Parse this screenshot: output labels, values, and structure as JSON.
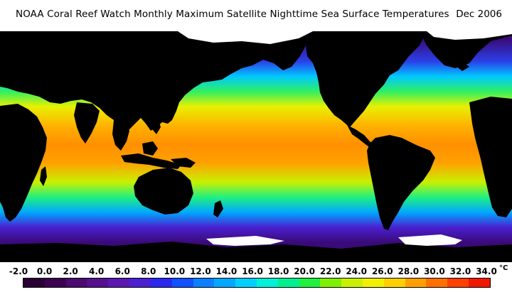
{
  "header": {
    "title": "NOAA Coral Reef Watch Monthly Maximum Satellite Nighttime Sea Surface Temperatures",
    "date": "Dec 2006"
  },
  "legend": {
    "unit": "°C",
    "ticks": [
      "-2.0",
      "0.0",
      "2.0",
      "4.0",
      "6.0",
      "8.0",
      "10.0",
      "12.0",
      "14.0",
      "16.0",
      "18.0",
      "20.0",
      "22.0",
      "24.0",
      "26.0",
      "28.0",
      "30.0",
      "32.0",
      "34.0"
    ],
    "colors": [
      "#2a0033",
      "#3b004f",
      "#4a0a6e",
      "#560f8e",
      "#5a18b0",
      "#4a20d0",
      "#2a28f0",
      "#1050ff",
      "#0a80ff",
      "#00a8ff",
      "#00d0ff",
      "#00f0d8",
      "#00f090",
      "#20f040",
      "#80f000",
      "#c8f000",
      "#f0f000",
      "#ffd000",
      "#ffa000",
      "#ff7000",
      "#ff4000",
      "#f01800"
    ]
  },
  "map": {
    "ocean_gradient": [
      {
        "lat": 70,
        "color": "#3a0a78"
      },
      {
        "lat": 55,
        "color": "#2a40e8"
      },
      {
        "lat": 45,
        "color": "#00c8ff"
      },
      {
        "lat": 35,
        "color": "#30f060"
      },
      {
        "lat": 25,
        "color": "#e8f000"
      },
      {
        "lat": 12,
        "color": "#ffb000"
      },
      {
        "lat": 0,
        "color": "#ff9000"
      },
      {
        "lat": -12,
        "color": "#ffa000"
      },
      {
        "lat": -25,
        "color": "#c8f000"
      },
      {
        "lat": -35,
        "color": "#20f080"
      },
      {
        "lat": -45,
        "color": "#00a8ff"
      },
      {
        "lat": -55,
        "color": "#4a20d0"
      },
      {
        "lat": -65,
        "color": "#3a0a78"
      }
    ],
    "land_color": "#000000",
    "ice_color": "#ffffff"
  }
}
